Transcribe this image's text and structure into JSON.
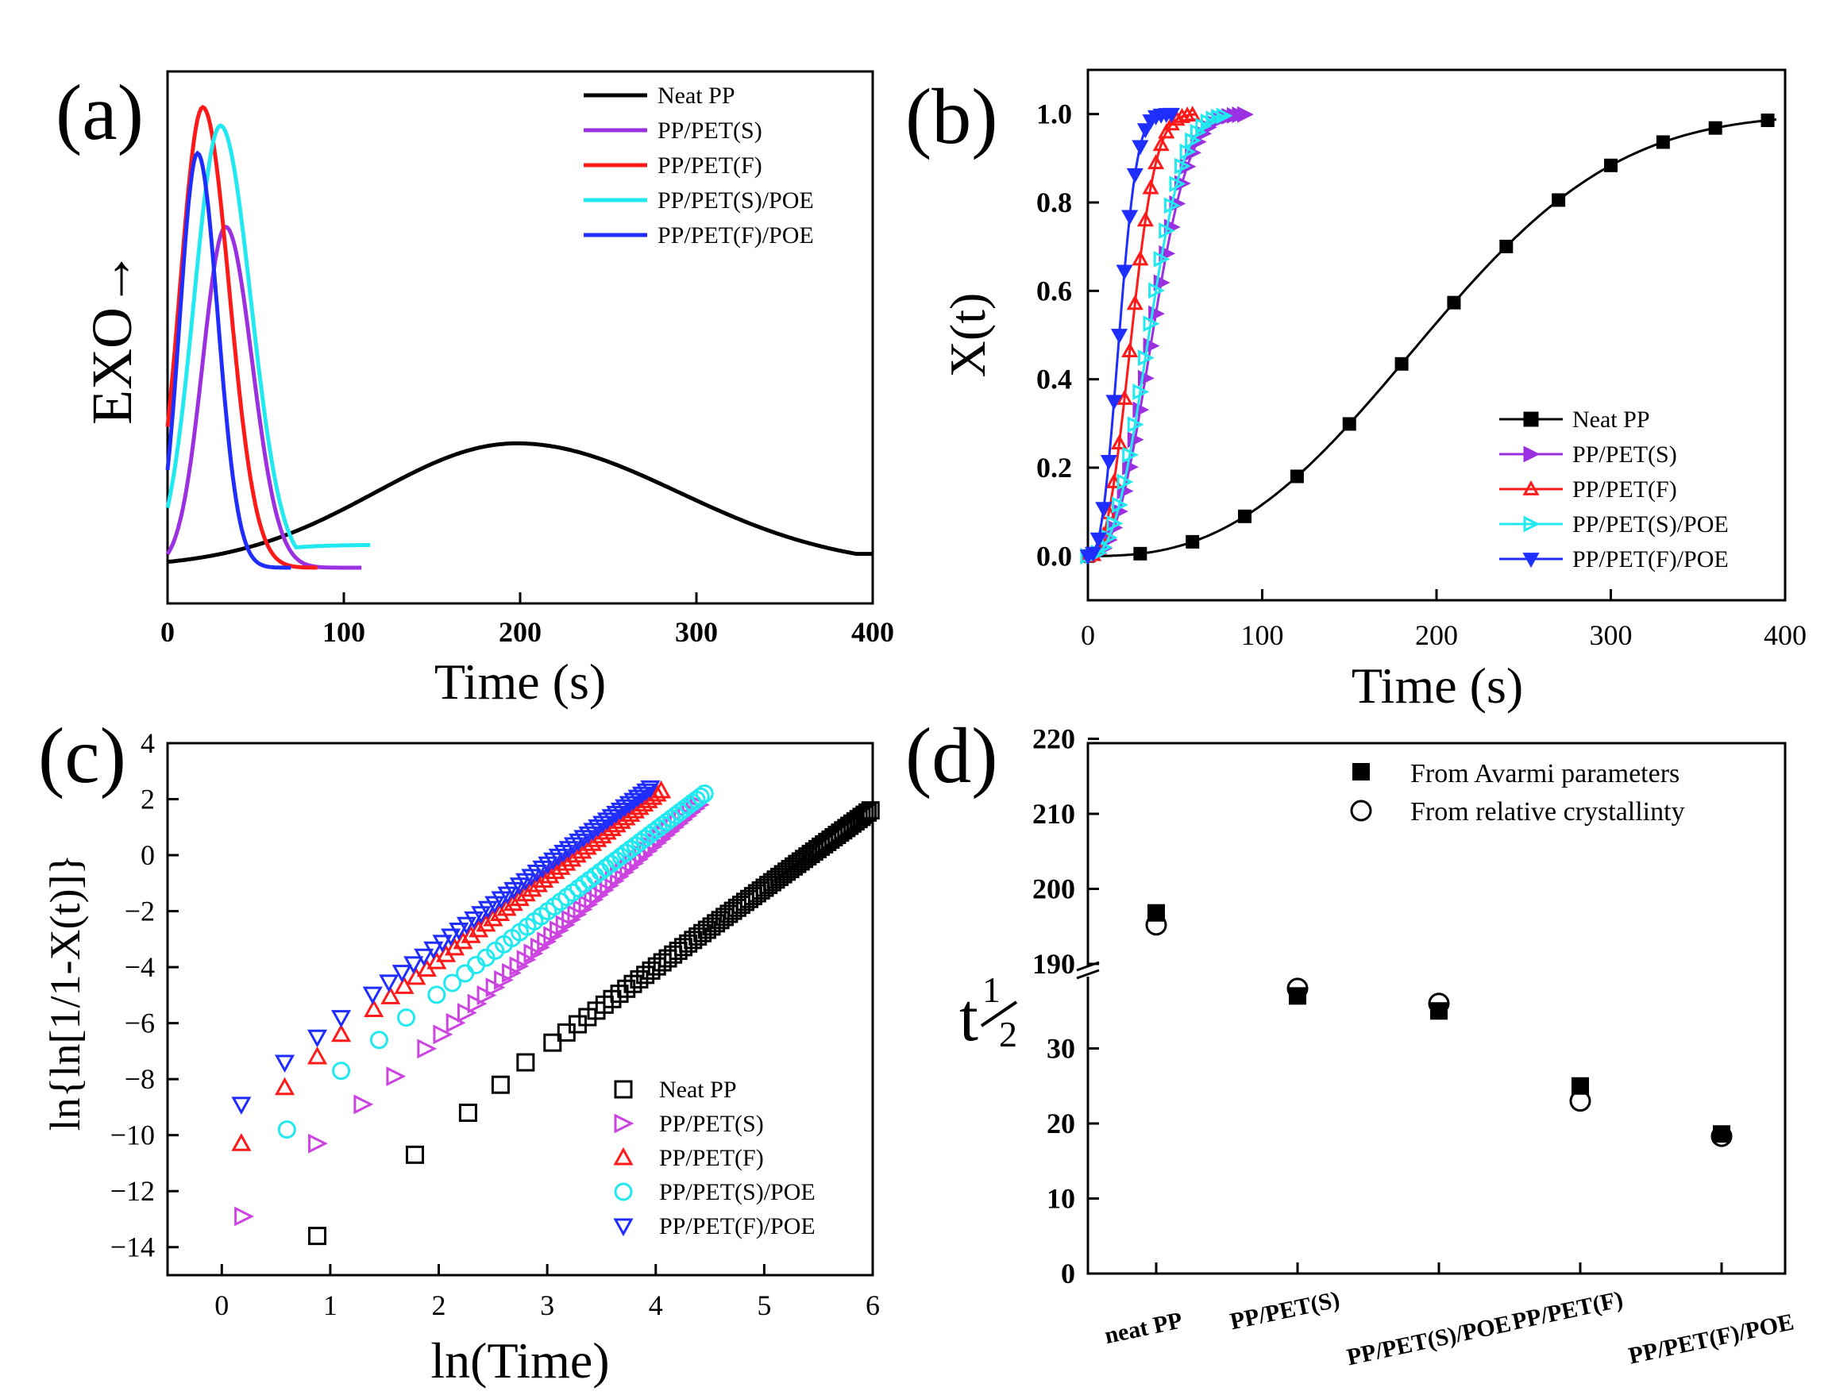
{
  "colors": {
    "black": "#000000",
    "purple": "#9b30e0",
    "violet": "#cc44e0",
    "red": "#ff1a1a",
    "cyan": "#22e8f0",
    "blue": "#1f2dff"
  },
  "chart_data": [
    {
      "id": "a",
      "panel_label": "(a)",
      "type": "line",
      "title": "",
      "xlabel": "Time (s)",
      "ylabel": "EXO→",
      "xlim": [
        0,
        400
      ],
      "ylim": [
        0,
        1.1
      ],
      "xticks": [
        "0",
        "100",
        "200",
        "300",
        "400"
      ],
      "legend": [
        "Neat PP",
        "PP/PET(S)",
        "PP/PET(F)",
        "PP/PET(S)/POE",
        "PP/PET(F)/POE"
      ],
      "legend_position": "top-right",
      "series": [
        {
          "name": "Neat PP",
          "color": "black",
          "peak_x": 198,
          "peak_y": 0.27,
          "sigma": 80,
          "end_x": 400,
          "tail": 0.03
        },
        {
          "name": "PP/PET(S)",
          "color": "purple",
          "peak_x": 33,
          "peak_y": 0.74,
          "sigma": 13,
          "end_x": 110,
          "tail": 0.0
        },
        {
          "name": "PP/PET(F)",
          "color": "red",
          "peak_x": 20,
          "peak_y": 1.0,
          "sigma": 13,
          "end_x": 85,
          "tail": 0.0
        },
        {
          "name": "PP/PET(S)/POE",
          "color": "cyan",
          "peak_x": 30,
          "peak_y": 0.96,
          "sigma": 15,
          "end_x": 115,
          "tail": 0.05
        },
        {
          "name": "PP/PET(F)/POE",
          "color": "blue",
          "peak_x": 17,
          "peak_y": 0.9,
          "sigma": 10,
          "end_x": 70,
          "tail": 0.0
        }
      ]
    },
    {
      "id": "b",
      "panel_label": "(b)",
      "type": "line",
      "title": "",
      "xlabel": "Time (s)",
      "ylabel": "X(t)",
      "xlim": [
        0,
        400
      ],
      "ylim": [
        -0.1,
        1.1
      ],
      "xticks": [
        "0",
        "100",
        "200",
        "300",
        "400"
      ],
      "yticks": [
        "0.0",
        "0.2",
        "0.4",
        "0.6",
        "0.8",
        "1.0"
      ],
      "legend": [
        "Neat PP",
        "PP/PET(S)",
        "PP/PET(F)",
        "PP/PET(S)/POE",
        "PP/PET(F)/POE"
      ],
      "legend_position": "bottom-right",
      "series": [
        {
          "name": "Neat PP",
          "color": "black",
          "marker": "square-filled",
          "t_half": 194,
          "n": 2.6,
          "end_x": 395,
          "marker_step": 30
        },
        {
          "name": "PP/PET(S)",
          "color": "purple",
          "marker": "triangle-right-filled",
          "t_half": 37,
          "n": 2.6,
          "end_x": 90,
          "marker_step": 3
        },
        {
          "name": "PP/PET(F)",
          "color": "red",
          "marker": "triangle-up-open",
          "t_half": 25,
          "n": 2.6,
          "end_x": 62,
          "marker_step": 3
        },
        {
          "name": "PP/PET(S)/POE",
          "color": "cyan",
          "marker": "triangle-right-open",
          "t_half": 35,
          "n": 2.6,
          "end_x": 80,
          "marker_step": 3
        },
        {
          "name": "PP/PET(F)/POE",
          "color": "blue",
          "marker": "triangle-down-filled",
          "t_half": 18,
          "n": 2.6,
          "end_x": 50,
          "marker_step": 3
        }
      ]
    },
    {
      "id": "c",
      "panel_label": "(c)",
      "type": "scatter",
      "title": "",
      "xlabel": "ln(Time)",
      "ylabel": "ln{ln[1/1-X(t)]}",
      "xlim": [
        -0.5,
        6
      ],
      "ylim": [
        -15,
        4
      ],
      "xticks": [
        "0",
        "1",
        "2",
        "3",
        "4",
        "5",
        "6"
      ],
      "yticks": [
        "4",
        "2",
        "0",
        "−2",
        "−4",
        "−6",
        "−8",
        "−10",
        "−12",
        "−14"
      ],
      "legend": [
        "Neat PP",
        "PP/PET(S)",
        "PP/PET(F)",
        "PP/PET(S)/POE",
        "PP/PET(F)/POE"
      ],
      "legend_position": "bottom-right",
      "series": [
        {
          "name": "Neat PP",
          "color": "black",
          "marker": "square-open",
          "first_points": [
            [
              0.88,
              -13.6
            ],
            [
              1.78,
              -10.7
            ],
            [
              2.27,
              -9.2
            ],
            [
              2.57,
              -8.2
            ]
          ],
          "line_start": [
            2.8,
            -7.4
          ],
          "line_end": [
            5.98,
            1.6
          ]
        },
        {
          "name": "PP/PET(S)",
          "color": "violet",
          "marker": "triangle-right-open",
          "first_points": [
            [
              0.2,
              -12.9
            ],
            [
              0.88,
              -10.3
            ],
            [
              1.3,
              -8.9
            ]
          ],
          "line_start": [
            1.6,
            -7.9
          ],
          "line_end": [
            4.4,
            1.8
          ]
        },
        {
          "name": "PP/PET(F)",
          "color": "red",
          "marker": "triangle-up-open",
          "first_points": [
            [
              0.18,
              -10.3
            ],
            [
              0.58,
              -8.3
            ],
            [
              0.88,
              -7.2
            ]
          ],
          "line_start": [
            1.1,
            -6.4
          ],
          "line_end": [
            4.05,
            2.3
          ]
        },
        {
          "name": "PP/PET(S)/POE",
          "color": "cyan",
          "marker": "circle-open",
          "first_points": [
            [
              0.6,
              -9.8
            ],
            [
              1.1,
              -7.7
            ],
            [
              1.45,
              -6.6
            ]
          ],
          "line_start": [
            1.7,
            -5.8
          ],
          "line_end": [
            4.45,
            2.2
          ]
        },
        {
          "name": "PP/PET(F)/POE",
          "color": "blue",
          "marker": "triangle-down-open",
          "first_points": [
            [
              0.18,
              -8.9
            ],
            [
              0.58,
              -7.4
            ],
            [
              0.88,
              -6.5
            ]
          ],
          "line_start": [
            1.1,
            -5.8
          ],
          "line_end": [
            3.95,
            2.4
          ]
        }
      ]
    },
    {
      "id": "d",
      "panel_label": "(d)",
      "type": "scatter",
      "title": "",
      "xlabel": "",
      "ylabel": "t½",
      "ylabel_base": "t",
      "ylabel_super": "1",
      "ylabel_sub": "2",
      "axis_break": "between 40 and 190",
      "ylim_lower": [
        0,
        40
      ],
      "ylim_upper": [
        190,
        220
      ],
      "yticks_lower": [
        "0",
        "10",
        "20",
        "30"
      ],
      "yticks_upper": [
        "190",
        "200",
        "210",
        "220"
      ],
      "categories": [
        "neat PP",
        "PP/PET(S)",
        "PP/PET(S)/POE",
        "PP/PET(F)",
        "PP/PET(F)/POE"
      ],
      "legend_position": "top-right",
      "series": [
        {
          "name": "From Avarmi parameters",
          "marker": "square-filled",
          "values": [
            196.8,
            37.0,
            35.0,
            25.0,
            18.6
          ]
        },
        {
          "name": "From relative crystallinty",
          "marker": "circle-open",
          "values": [
            195.2,
            38.0,
            36.0,
            23.0,
            18.3
          ]
        }
      ]
    }
  ]
}
